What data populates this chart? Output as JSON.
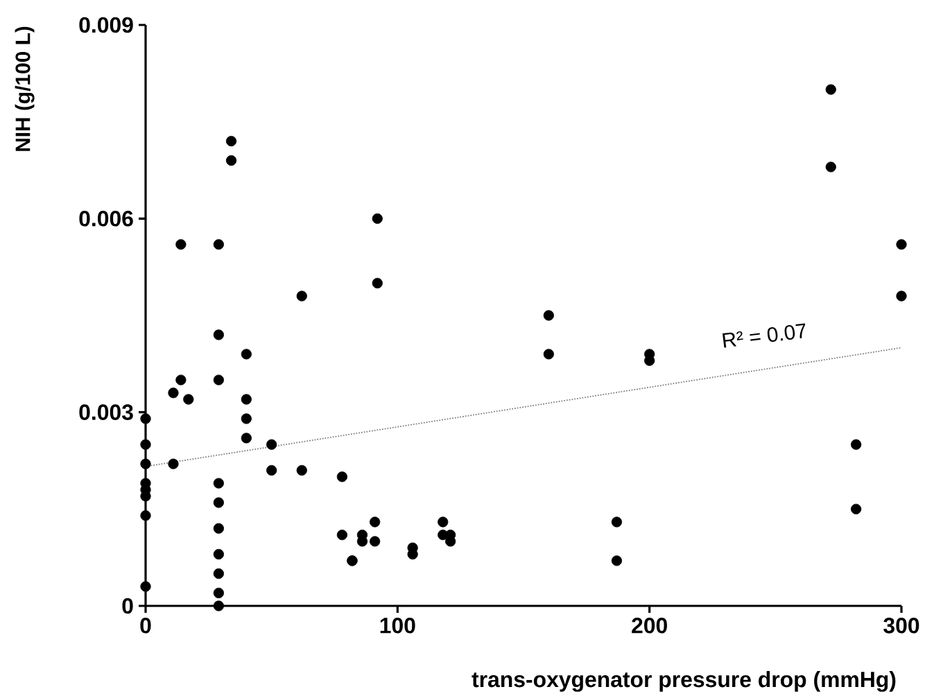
{
  "chart_data": {
    "type": "scatter",
    "xlabel": "trans-oxygenator pressure drop (mmHg)",
    "ylabel": "NIH (g/100 L)",
    "xlim": [
      0,
      300
    ],
    "ylim": [
      0,
      0.009
    ],
    "xticks": [
      0,
      100,
      200,
      300
    ],
    "yticks": [
      0,
      0.003,
      0.006,
      0.009
    ],
    "series": [
      {
        "color": "#000000",
        "marker": "circle",
        "x": [
          0,
          0,
          0,
          0,
          0,
          0,
          0,
          0,
          11,
          11,
          14,
          14,
          17,
          29,
          29,
          29,
          29,
          29,
          29,
          29,
          29,
          29,
          29,
          34,
          34,
          40,
          40,
          40,
          40,
          50,
          50,
          62,
          62,
          78,
          78,
          82,
          82,
          86,
          86,
          91,
          91,
          92,
          92,
          106,
          106,
          118,
          118,
          121,
          121,
          160,
          160,
          187,
          187,
          200,
          200,
          272,
          272,
          282,
          282,
          300,
          300
        ],
        "values": [
          0.0029,
          0.0025,
          0.0022,
          0.0019,
          0.0018,
          0.0017,
          0.0014,
          0.0003,
          0.0033,
          0.0022,
          0.0056,
          0.0035,
          0.0032,
          0.0056,
          0.0042,
          0.0035,
          0.0019,
          0.0016,
          0.0012,
          0.0008,
          0.0005,
          0.0002,
          0.0,
          0.0072,
          0.0069,
          0.0039,
          0.0032,
          0.0029,
          0.0026,
          0.0025,
          0.0021,
          0.0048,
          0.0021,
          0.002,
          0.0011,
          0.0007,
          0.0007,
          0.0011,
          0.001,
          0.0013,
          0.001,
          0.006,
          0.005,
          0.0009,
          0.0008,
          0.0013,
          0.0011,
          0.0011,
          0.001,
          0.0045,
          0.0039,
          0.0013,
          0.0007,
          0.0039,
          0.0038,
          0.008,
          0.0068,
          0.0025,
          0.0015,
          0.0056,
          0.0048
        ]
      },
      {
        "type": "line",
        "color": "#808080",
        "marker": "none",
        "line_style": "dotted",
        "x": [
          0,
          300
        ],
        "values": [
          0.00216,
          0.004
        ]
      }
    ],
    "annotations": [
      "R² = 0.07"
    ]
  }
}
